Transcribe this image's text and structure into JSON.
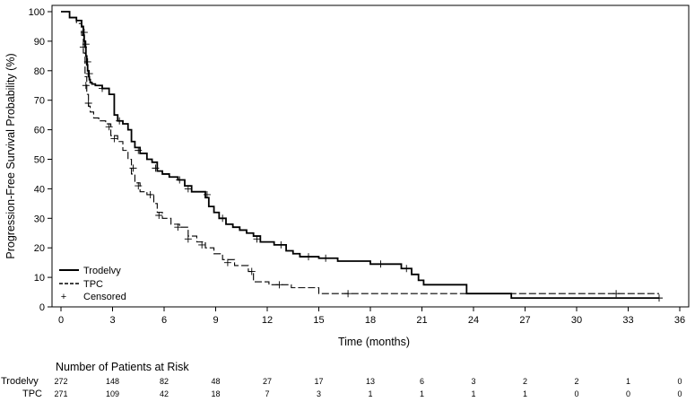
{
  "chart_data": {
    "type": "line",
    "subtype": "kaplan-meier",
    "title": "",
    "xlabel": "Time (months)",
    "ylabel": "Progression-Free Survival Probability (%)",
    "xlim": [
      0,
      36
    ],
    "ylim": [
      0,
      100
    ],
    "xticks": [
      "0",
      "3",
      "6",
      "9",
      "12",
      "15",
      "18",
      "21",
      "24",
      "27",
      "30",
      "33",
      "36"
    ],
    "yticks": [
      "0",
      "10",
      "20",
      "30",
      "40",
      "50",
      "60",
      "70",
      "80",
      "90",
      "100"
    ],
    "grid": false,
    "legend": {
      "placement": "bottom-left",
      "entries": [
        {
          "label": "Trodelvy",
          "style": "solid"
        },
        {
          "label": "TPC",
          "style": "dashed"
        },
        {
          "label": "Censored",
          "style": "plus-marker"
        }
      ]
    },
    "series": [
      {
        "name": "Trodelvy",
        "style": "solid",
        "x": [
          0,
          0.5,
          0.9,
          1.2,
          1.3,
          1.35,
          1.4,
          1.45,
          1.5,
          1.55,
          1.6,
          1.65,
          1.7,
          1.8,
          2.0,
          2.4,
          2.8,
          3.1,
          3.3,
          3.6,
          3.9,
          4.1,
          4.3,
          4.6,
          5.0,
          5.3,
          5.6,
          5.9,
          6.3,
          6.8,
          7.2,
          7.6,
          8.4,
          8.6,
          8.9,
          9.2,
          9.6,
          10.0,
          10.4,
          10.8,
          11.2,
          11.6,
          12.4,
          13.1,
          13.5,
          13.9,
          15.0,
          16.1,
          18.0,
          19.8,
          20.4,
          20.8,
          21.1,
          23.6,
          26.2,
          34.8
        ],
        "y": [
          100,
          98,
          97,
          95,
          92,
          90,
          88,
          85,
          82,
          80,
          78,
          77,
          76,
          75.5,
          75,
          74,
          72,
          65,
          63,
          62,
          60,
          56,
          54,
          52,
          50,
          49,
          46,
          45,
          44,
          43,
          41,
          39,
          37,
          34,
          32,
          30,
          28,
          27,
          26,
          25,
          24,
          22,
          21,
          19,
          18,
          17,
          16.5,
          15.5,
          14.5,
          13,
          11,
          9,
          7.5,
          4.5,
          3,
          3
        ],
        "censored": [
          [
            1.35,
            93
          ],
          [
            1.45,
            89
          ],
          [
            1.55,
            83
          ],
          [
            1.65,
            79
          ],
          [
            2.4,
            74
          ],
          [
            3.4,
            63
          ],
          [
            4.5,
            53
          ],
          [
            5.5,
            47
          ],
          [
            6.9,
            43
          ],
          [
            7.4,
            40
          ],
          [
            8.5,
            38
          ],
          [
            9.4,
            30
          ],
          [
            11.4,
            23
          ],
          [
            12.8,
            21
          ],
          [
            14.4,
            17
          ],
          [
            15.4,
            16.5
          ],
          [
            18.6,
            14.5
          ],
          [
            20.1,
            13
          ],
          [
            34.8,
            3
          ]
        ]
      },
      {
        "name": "TPC",
        "style": "dashed",
        "x": [
          0,
          0.5,
          0.9,
          1.2,
          1.3,
          1.4,
          1.5,
          1.6,
          1.7,
          1.9,
          2.2,
          2.6,
          2.9,
          3.3,
          3.6,
          3.9,
          4.1,
          4.3,
          4.6,
          5.0,
          5.4,
          5.6,
          5.9,
          6.4,
          6.9,
          7.4,
          7.9,
          8.4,
          8.9,
          9.4,
          10.1,
          10.9,
          11.2,
          12.1,
          13.4,
          15.0,
          23.6,
          34.8
        ],
        "y": [
          100,
          98,
          96,
          92,
          86,
          78,
          72,
          68,
          66,
          64,
          63,
          62,
          58,
          56,
          53,
          50,
          45,
          42,
          39,
          38,
          35,
          32,
          30,
          28,
          27,
          24,
          22,
          20,
          18,
          16,
          14,
          12,
          8.5,
          7.5,
          6.5,
          4.5,
          4.5,
          4.5
        ],
        "censored": [
          [
            1.3,
            88
          ],
          [
            1.45,
            75
          ],
          [
            1.6,
            69
          ],
          [
            2.8,
            61
          ],
          [
            3.1,
            57
          ],
          [
            4.2,
            47
          ],
          [
            4.5,
            41
          ],
          [
            5.2,
            38
          ],
          [
            5.7,
            31
          ],
          [
            6.8,
            27
          ],
          [
            7.4,
            23
          ],
          [
            8.2,
            21
          ],
          [
            9.7,
            15
          ],
          [
            11.1,
            12
          ],
          [
            12.7,
            7.5
          ],
          [
            16.7,
            4.5
          ],
          [
            32.3,
            4.5
          ]
        ]
      }
    ],
    "risk_table": {
      "title": "Number of Patients at Risk",
      "timepoints": [
        0,
        3,
        6,
        9,
        12,
        15,
        18,
        21,
        24,
        27,
        30,
        33,
        36
      ],
      "rows": [
        {
          "label": "Trodelvy",
          "values": [
            "272",
            "148",
            "82",
            "48",
            "27",
            "17",
            "13",
            "6",
            "3",
            "2",
            "2",
            "1",
            "0"
          ]
        },
        {
          "label": "TPC",
          "values": [
            "271",
            "109",
            "42",
            "18",
            "7",
            "3",
            "1",
            "1",
            "1",
            "1",
            "0",
            "0",
            "0"
          ]
        }
      ]
    }
  }
}
